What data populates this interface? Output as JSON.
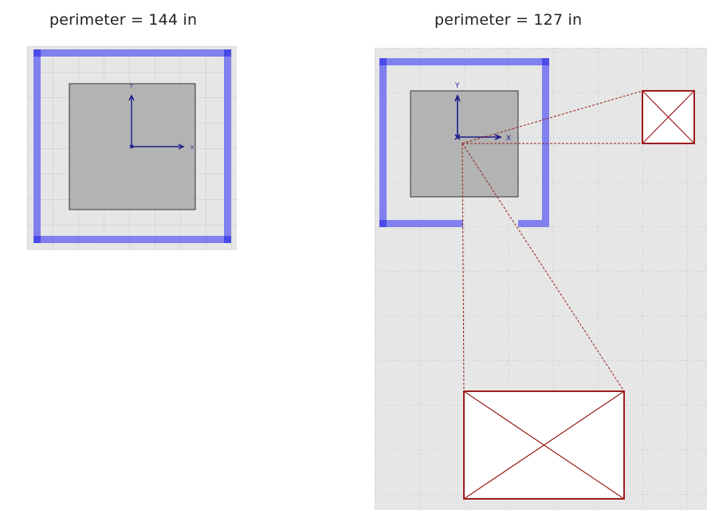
{
  "left_panel": {
    "caption": "perimeter = 144 in",
    "axis_y_label": "Y",
    "axis_x_label": "X"
  },
  "right_panel": {
    "caption": "perimeter = 127 in",
    "axis_y_label": "Y",
    "axis_x_label": "X"
  },
  "colors": {
    "canvas_bg": "#e6e6e6",
    "grid": "#c8c8c8",
    "frame": "#6f6ff0",
    "frame_corner": "#4a4ae8",
    "inner_square": "#b3b3b3",
    "axes": "#1a1a8c",
    "callout": "#9b1c1c"
  }
}
